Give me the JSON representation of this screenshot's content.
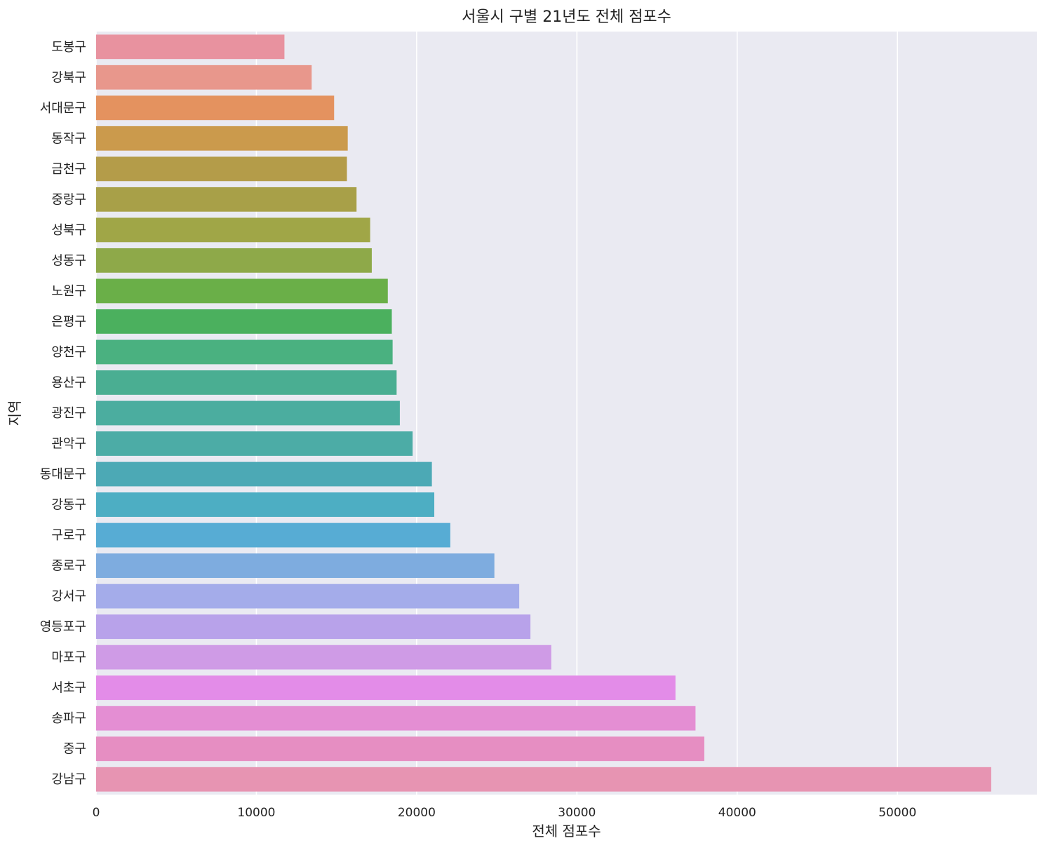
{
  "chart_data": {
    "type": "bar",
    "orientation": "horizontal",
    "title": "서울시 구별 21년도 전체 점포수",
    "xlabel": "전체 점포수",
    "ylabel": "지역",
    "grid": true,
    "xlim": [
      0,
      58700
    ],
    "xticks": [
      0,
      10000,
      20000,
      30000,
      40000,
      50000
    ],
    "categories": [
      "도봉구",
      "강북구",
      "서대문구",
      "동작구",
      "금천구",
      "중랑구",
      "성북구",
      "성동구",
      "노원구",
      "은평구",
      "양천구",
      "용산구",
      "광진구",
      "관악구",
      "동대문구",
      "강동구",
      "구로구",
      "종로구",
      "강서구",
      "영등포구",
      "마포구",
      "서초구",
      "송파구",
      "중구",
      "강남구"
    ],
    "values": [
      11750,
      13450,
      14850,
      15700,
      15650,
      16250,
      17100,
      17200,
      18200,
      18450,
      18500,
      18750,
      18950,
      19750,
      20950,
      21100,
      22100,
      24850,
      26400,
      27100,
      28400,
      36150,
      37400,
      37950,
      55850
    ],
    "colors": [
      "#e8929f",
      "#e8978c",
      "#e4925f",
      "#cb9a4c",
      "#b49c49",
      "#a8a048",
      "#a0a647",
      "#8ea949",
      "#6aaf48",
      "#4bb05e",
      "#4ab180",
      "#4aae92",
      "#4bad9f",
      "#4caca6",
      "#4ca9b5",
      "#4daec3",
      "#57acd4",
      "#7eacdf",
      "#a4acea",
      "#b8a2ea",
      "#cf9be6",
      "#e38ce8",
      "#e48ed3",
      "#e68ec2",
      "#e794b2"
    ],
    "background": "#eaeaf2"
  }
}
